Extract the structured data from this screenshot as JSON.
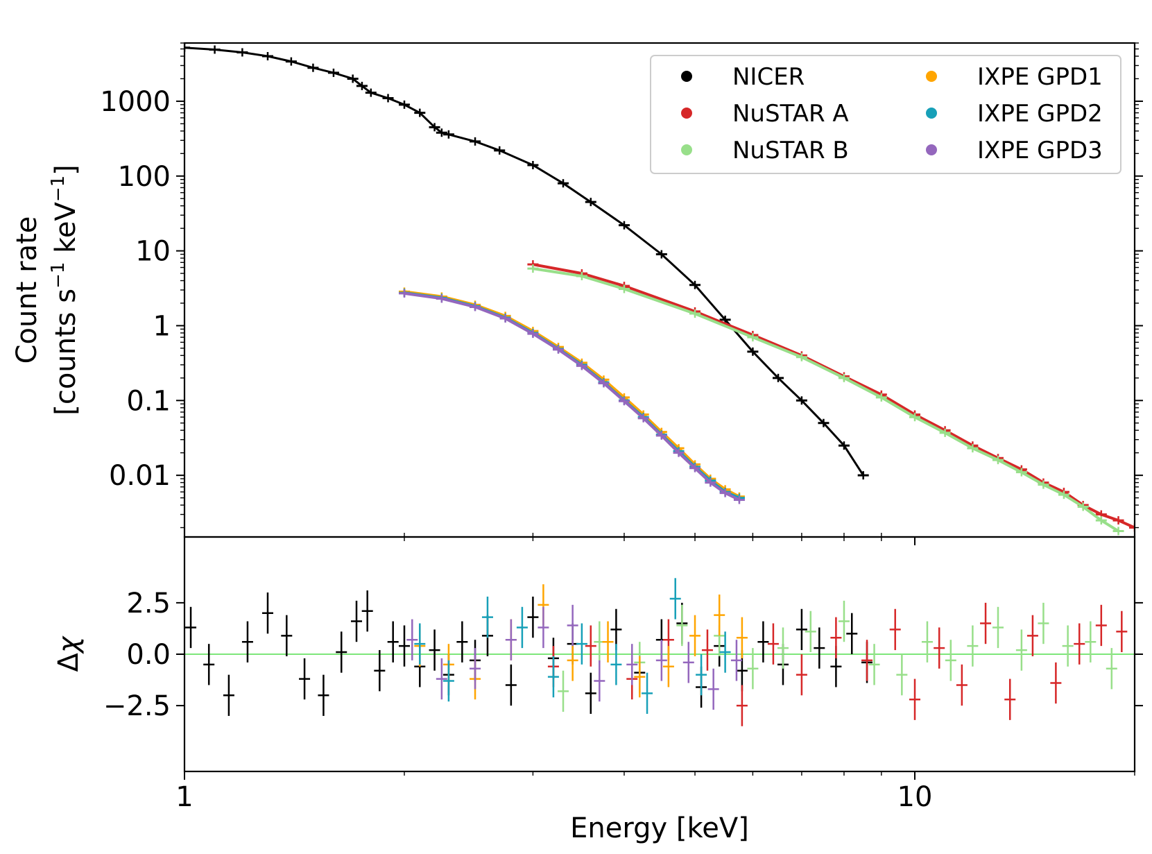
{
  "chart_data": [
    {
      "panel": "top",
      "type": "line",
      "xscale": "log",
      "yscale": "log",
      "xlim": [
        1,
        20
      ],
      "ylim": [
        0.0015,
        6000
      ],
      "ylabel_line1": "Count rate",
      "ylabel_prefix": "[counts s",
      "ylabel_mid": " keV",
      "ylabel_exp": "−1",
      "ylabel_suffix": "]",
      "yticks": [
        {
          "value": 1000,
          "label": "1000"
        },
        {
          "value": 100,
          "label": "100"
        },
        {
          "value": 10,
          "label": "10"
        },
        {
          "value": 1,
          "label": "1"
        },
        {
          "value": 0.1,
          "label": "0.1"
        },
        {
          "value": 0.01,
          "label": "0.01"
        }
      ],
      "legend": {
        "placement": "top-right",
        "entries": [
          {
            "label": "NICER",
            "color": "#000000"
          },
          {
            "label": "NuSTAR A",
            "color": "#d62728"
          },
          {
            "label": "NuSTAR B",
            "color": "#98df8a"
          },
          {
            "label": "IXPE GPD1",
            "color": "#ffa500"
          },
          {
            "label": "IXPE GPD2",
            "color": "#17a0b8"
          },
          {
            "label": "IXPE GPD3",
            "color": "#9467bd"
          }
        ]
      },
      "series": [
        {
          "name": "NICER",
          "color": "#000000",
          "x": [
            1.0,
            1.1,
            1.2,
            1.3,
            1.4,
            1.5,
            1.6,
            1.7,
            1.75,
            1.8,
            1.9,
            2.0,
            2.1,
            2.2,
            2.25,
            2.3,
            2.5,
            2.7,
            3.0,
            3.3,
            3.6,
            4.0,
            4.5,
            5.0,
            5.5,
            6.0,
            6.5,
            7.0,
            7.5,
            8.0,
            8.5
          ],
          "y": [
            5200,
            4900,
            4500,
            4000,
            3400,
            2800,
            2400,
            2000,
            1600,
            1300,
            1100,
            900,
            700,
            450,
            380,
            360,
            290,
            220,
            140,
            80,
            45,
            22,
            9,
            3.5,
            1.2,
            0.45,
            0.2,
            0.1,
            0.05,
            0.025,
            0.01
          ]
        },
        {
          "name": "NuSTAR A",
          "color": "#d62728",
          "x": [
            3.0,
            3.5,
            4.0,
            5.0,
            6.0,
            7.0,
            8.0,
            9.0,
            10.0,
            11.0,
            12.0,
            13.0,
            14.0,
            15.0,
            16.0,
            17.0,
            18.0,
            19.0,
            20.0
          ],
          "y": [
            6.6,
            5.0,
            3.4,
            1.55,
            0.75,
            0.4,
            0.21,
            0.12,
            0.065,
            0.04,
            0.025,
            0.017,
            0.012,
            0.008,
            0.006,
            0.004,
            0.003,
            0.0025,
            0.002
          ]
        },
        {
          "name": "NuSTAR B",
          "color": "#98df8a",
          "x": [
            3.0,
            3.5,
            4.0,
            5.0,
            6.0,
            7.0,
            8.0,
            9.0,
            10.0,
            11.0,
            12.0,
            13.0,
            14.0,
            15.0,
            16.0,
            17.0,
            18.0,
            19.0
          ],
          "y": [
            5.8,
            4.6,
            3.1,
            1.45,
            0.7,
            0.38,
            0.2,
            0.11,
            0.06,
            0.037,
            0.023,
            0.016,
            0.011,
            0.0075,
            0.0055,
            0.0038,
            0.0025,
            0.0018
          ]
        },
        {
          "name": "IXPE GPD1",
          "color": "#ffa500",
          "x": [
            2.0,
            2.25,
            2.5,
            2.75,
            3.0,
            3.25,
            3.5,
            3.75,
            4.0,
            4.25,
            4.5,
            4.75,
            5.0,
            5.25,
            5.5,
            5.75
          ],
          "y": [
            2.85,
            2.45,
            1.9,
            1.35,
            0.85,
            0.52,
            0.32,
            0.19,
            0.11,
            0.065,
            0.038,
            0.023,
            0.014,
            0.009,
            0.0065,
            0.0052
          ]
        },
        {
          "name": "IXPE GPD2",
          "color": "#17a0b8",
          "x": [
            2.0,
            2.25,
            2.5,
            2.75,
            3.0,
            3.25,
            3.5,
            3.75,
            4.0,
            4.25,
            4.5,
            4.75,
            5.0,
            5.25,
            5.5,
            5.75
          ],
          "y": [
            2.75,
            2.35,
            1.82,
            1.28,
            0.8,
            0.49,
            0.3,
            0.175,
            0.1,
            0.06,
            0.035,
            0.021,
            0.013,
            0.0085,
            0.006,
            0.005
          ]
        },
        {
          "name": "IXPE GPD3",
          "color": "#9467bd",
          "x": [
            2.0,
            2.25,
            2.5,
            2.75,
            3.0,
            3.25,
            3.5,
            3.75,
            4.0,
            4.25,
            4.5,
            4.75,
            5.0,
            5.25,
            5.5,
            5.75
          ],
          "y": [
            2.7,
            2.3,
            1.78,
            1.25,
            0.78,
            0.48,
            0.29,
            0.17,
            0.098,
            0.058,
            0.034,
            0.02,
            0.0125,
            0.008,
            0.0058,
            0.0047
          ]
        }
      ]
    },
    {
      "panel": "bottom",
      "type": "scatter",
      "xscale": "log",
      "xlim": [
        1,
        20
      ],
      "ylim": [
        -5.7,
        5.7
      ],
      "xlabel": "Energy [keV]",
      "ylabel_delta": "Δ",
      "ylabel_chi": "χ",
      "reference_line": {
        "y": 0.0,
        "color": "#7ee67a"
      },
      "xticks": [
        {
          "value": 1,
          "label": "1"
        },
        {
          "value": 10,
          "label": "10"
        }
      ],
      "yticks": [
        {
          "value": 2.5,
          "label": "2.5"
        },
        {
          "value": 0.0,
          "label": "0.0"
        },
        {
          "value": -2.5,
          "label": "−2.5"
        }
      ],
      "series": [
        {
          "name": "NICER",
          "color": "#000000",
          "x": [
            1.02,
            1.08,
            1.15,
            1.22,
            1.3,
            1.38,
            1.46,
            1.55,
            1.64,
            1.72,
            1.78,
            1.85,
            1.93,
            2.0,
            2.1,
            2.2,
            2.3,
            2.4,
            2.5,
            2.6,
            2.8,
            3.0,
            3.2,
            3.4,
            3.6,
            3.9,
            4.2,
            4.5,
            4.8,
            5.1,
            5.4,
            5.8,
            6.2,
            6.6,
            7.0,
            7.4,
            7.8,
            8.2,
            8.6
          ],
          "y": [
            1.3,
            -0.5,
            -2.0,
            0.6,
            2.0,
            0.9,
            -1.2,
            -2.0,
            0.1,
            1.6,
            2.1,
            -0.8,
            0.6,
            0.4,
            -0.6,
            0.2,
            -1.0,
            0.6,
            -0.3,
            0.9,
            -1.5,
            1.8,
            -0.2,
            0.5,
            -1.9,
            1.2,
            -0.9,
            0.7,
            1.5,
            -1.6,
            0.4,
            -0.8,
            0.6,
            -0.5,
            1.2,
            0.3,
            -0.6,
            1.0,
            -0.4
          ]
        },
        {
          "name": "NuSTAR A",
          "color": "#d62728",
          "x": [
            3.2,
            3.6,
            4.1,
            4.6,
            5.2,
            5.8,
            6.4,
            7.0,
            7.8,
            8.6,
            9.4,
            10.0,
            10.8,
            11.6,
            12.5,
            13.5,
            14.5,
            15.6,
            16.8,
            18.0,
            19.2
          ],
          "y": [
            -0.6,
            0.4,
            -1.2,
            0.7,
            0.2,
            -2.5,
            0.5,
            -1.0,
            0.8,
            -0.3,
            1.2,
            -2.2,
            0.3,
            -1.5,
            1.5,
            -2.2,
            0.9,
            -1.4,
            0.5,
            1.4,
            1.1
          ]
        },
        {
          "name": "NuSTAR B",
          "color": "#98df8a",
          "x": [
            3.3,
            3.7,
            4.2,
            4.8,
            5.4,
            6.0,
            6.6,
            7.2,
            8.0,
            8.8,
            9.6,
            10.4,
            11.2,
            12.0,
            13.0,
            14.0,
            15.0,
            16.2,
            17.4,
            18.6
          ],
          "y": [
            -1.8,
            0.6,
            -0.4,
            1.4,
            0.9,
            -0.7,
            0.3,
            1.1,
            1.6,
            -0.5,
            -1.0,
            0.6,
            -0.3,
            0.4,
            1.3,
            0.2,
            1.5,
            0.4,
            0.6,
            -0.7
          ]
        },
        {
          "name": "IXPE GPD1",
          "color": "#ffa500",
          "x": [
            2.1,
            2.3,
            2.5,
            2.8,
            3.1,
            3.4,
            3.8,
            4.2,
            4.6,
            5.0,
            5.4,
            5.8
          ],
          "y": [
            0.4,
            -0.5,
            -1.2,
            0.7,
            2.4,
            -0.3,
            0.6,
            -1.1,
            -0.6,
            0.9,
            1.9,
            0.8
          ]
        },
        {
          "name": "IXPE GPD2",
          "color": "#17a0b8",
          "x": [
            2.1,
            2.3,
            2.6,
            2.9,
            3.2,
            3.5,
            3.9,
            4.3,
            4.7,
            5.1,
            5.5
          ],
          "y": [
            0.5,
            -1.3,
            1.8,
            1.3,
            -1.1,
            0.5,
            -0.5,
            -1.9,
            2.7,
            -1.0,
            0.1
          ]
        },
        {
          "name": "IXPE GPD3",
          "color": "#9467bd",
          "x": [
            2.05,
            2.25,
            2.5,
            2.8,
            3.1,
            3.4,
            3.7,
            4.1,
            4.5,
            4.9,
            5.3,
            5.7
          ],
          "y": [
            0.7,
            -1.2,
            -0.7,
            0.7,
            1.3,
            1.4,
            -1.3,
            -0.5,
            -0.3,
            -0.4,
            -1.7,
            -0.3
          ]
        }
      ]
    }
  ]
}
